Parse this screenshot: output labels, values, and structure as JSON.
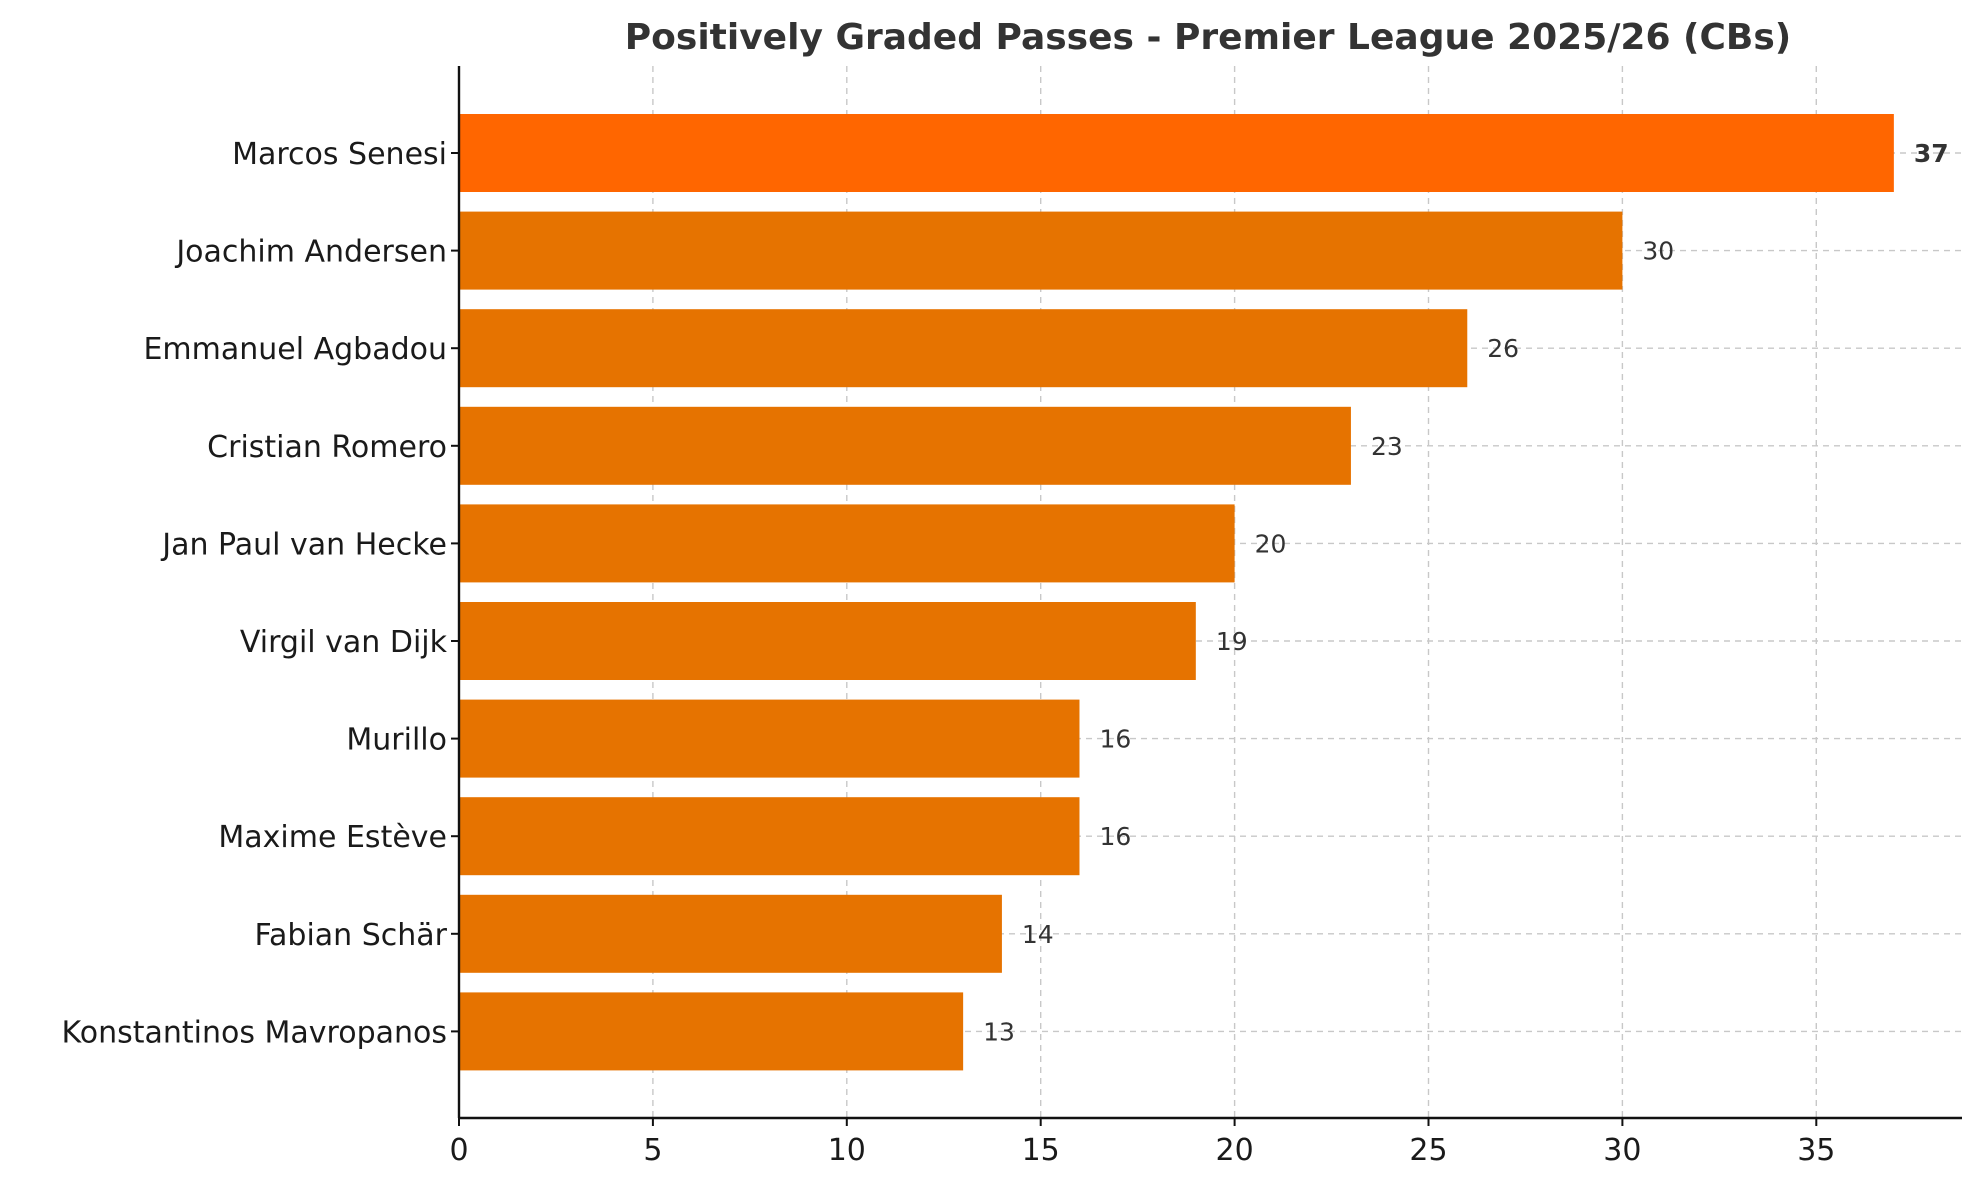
{
  "chart_data": {
    "type": "bar",
    "orientation": "horizontal",
    "title": "Positively Graded Passes - Premier League 2025/26 (CBs)",
    "xlabel": "",
    "ylabel": "",
    "xlim": [
      0,
      39
    ],
    "xticks": [
      0,
      5,
      10,
      15,
      20,
      25,
      30,
      35
    ],
    "grid": true,
    "categories": [
      "Marcos Senesi",
      "Joachim Andersen",
      "Emmanuel Agbadou",
      "Cristian Romero",
      "Jan Paul van Hecke",
      "Virgil van Dijk",
      "Murillo",
      "Maxime Estève",
      "Fabian Schär",
      "Konstantinos Mavropanos"
    ],
    "values": [
      37,
      30,
      26,
      23,
      20,
      19,
      16,
      16,
      14,
      13
    ],
    "highlight_index": 0,
    "colors": {
      "highlight": "#FF6600",
      "bar": "#E67300"
    }
  }
}
